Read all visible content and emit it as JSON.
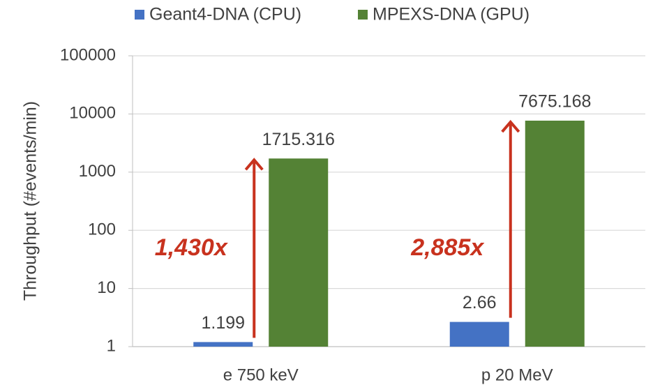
{
  "chart_data": {
    "type": "bar",
    "y_label": "Throughput (#events/min)",
    "categories": [
      "e 750 keV",
      "p 20 MeV"
    ],
    "series": [
      {
        "name": "Geant4-DNA (CPU)",
        "color": "#4472c4",
        "values": [
          1.199,
          2.66
        ]
      },
      {
        "name": "MPEXS-DNA (GPU)",
        "color": "#548235",
        "values": [
          1715.316,
          7675.168
        ]
      }
    ],
    "annotations": [
      "1,430x",
      "2,885x"
    ],
    "annotation_color": "#c8321e",
    "log_scale": true,
    "ylim": [
      1,
      100000
    ],
    "yticks": [
      1,
      10,
      100,
      1000,
      10000,
      100000
    ],
    "grid": true,
    "legend": "top"
  }
}
